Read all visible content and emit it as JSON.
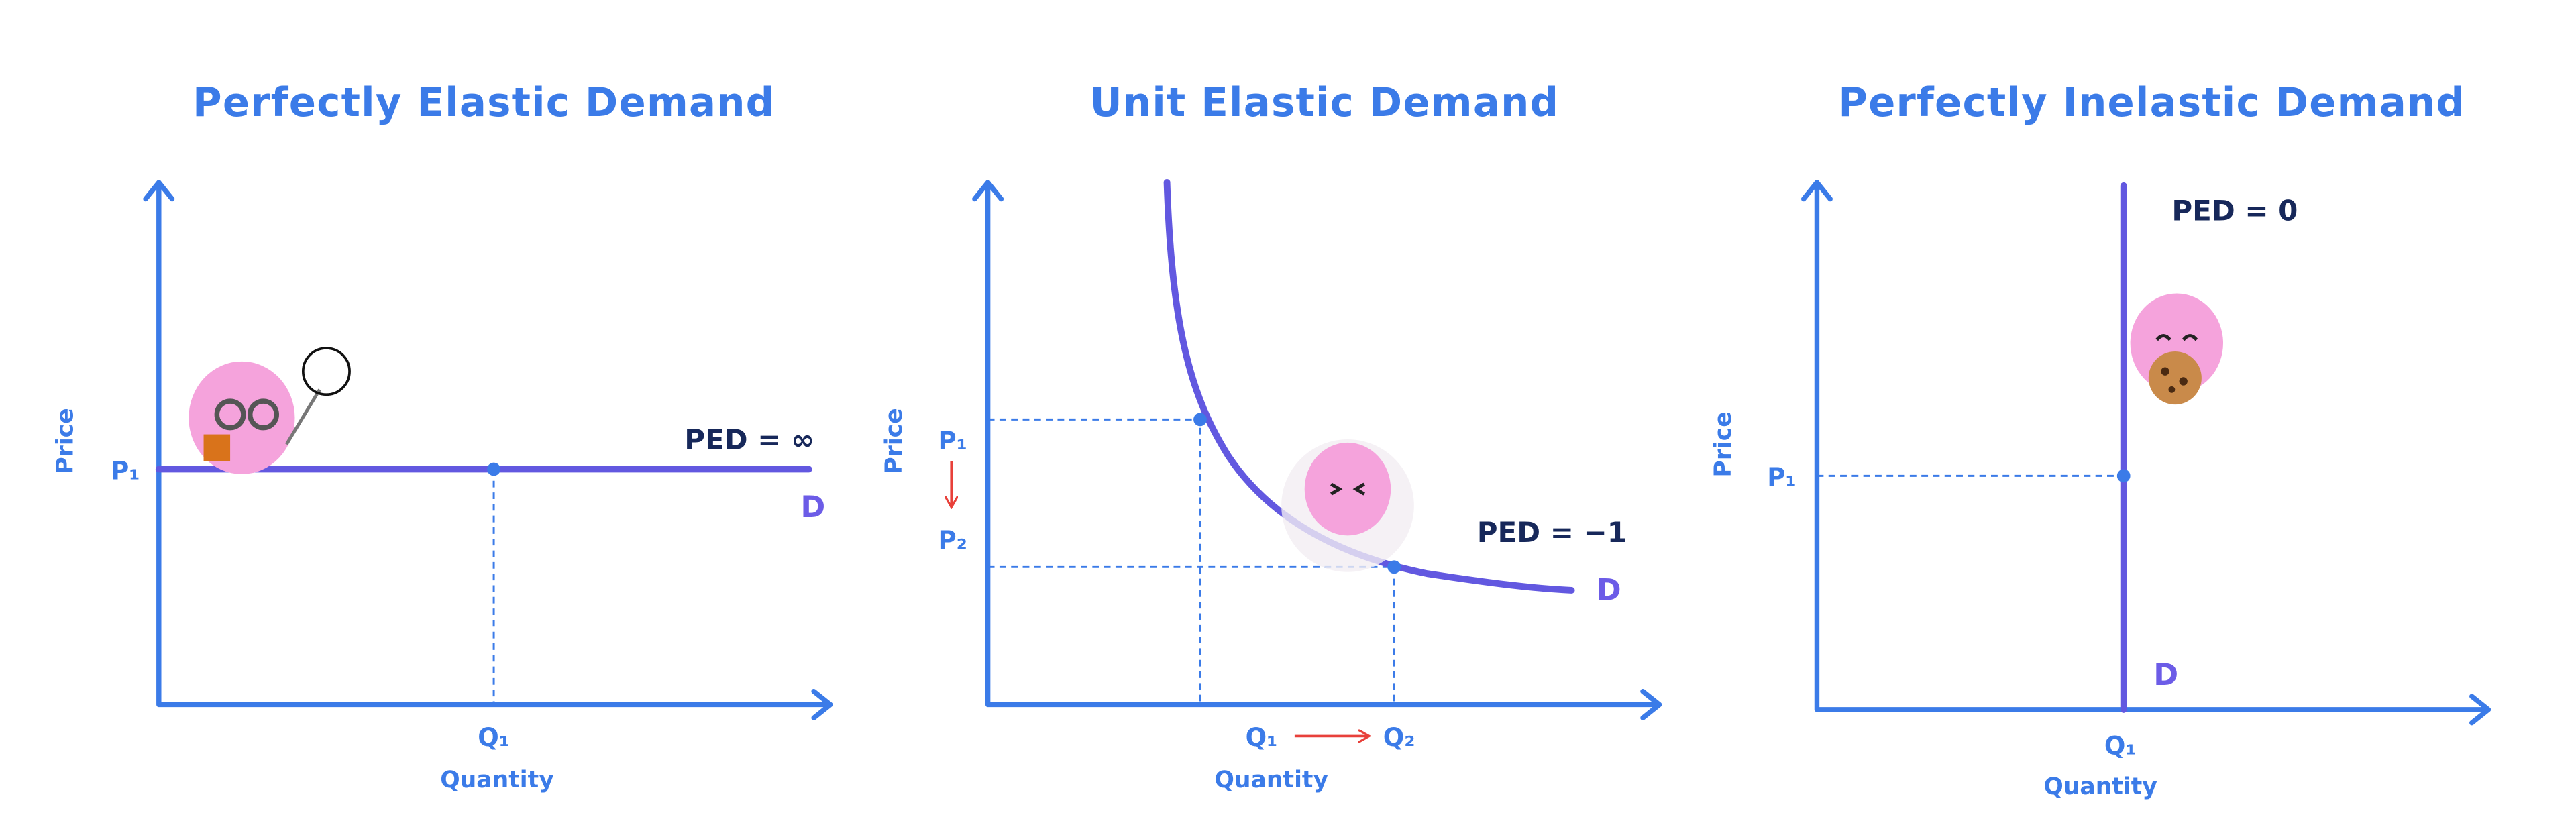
{
  "panels": [
    {
      "title": "Perfectly Elastic Demand",
      "y_axis_label": "Price",
      "x_axis_label": "Quantity",
      "price_label": "P₁",
      "quantity_label": "Q₁",
      "ped": "PED = ∞",
      "demand_label": "D"
    },
    {
      "title": "Unit Elastic Demand",
      "y_axis_label": "Price",
      "x_axis_label": "Quantity",
      "price_labels": [
        "P₁",
        "P₂"
      ],
      "quantity_labels": [
        "Q₁",
        "Q₂"
      ],
      "ped": "PED = −1",
      "demand_label": "D"
    },
    {
      "title": "Perfectly Inelastic Demand",
      "y_axis_label": "Price",
      "x_axis_label": "Quantity",
      "price_label": "P₁",
      "quantity_label": "Q₁",
      "ped": "PED = 0",
      "demand_label": "D"
    }
  ]
}
